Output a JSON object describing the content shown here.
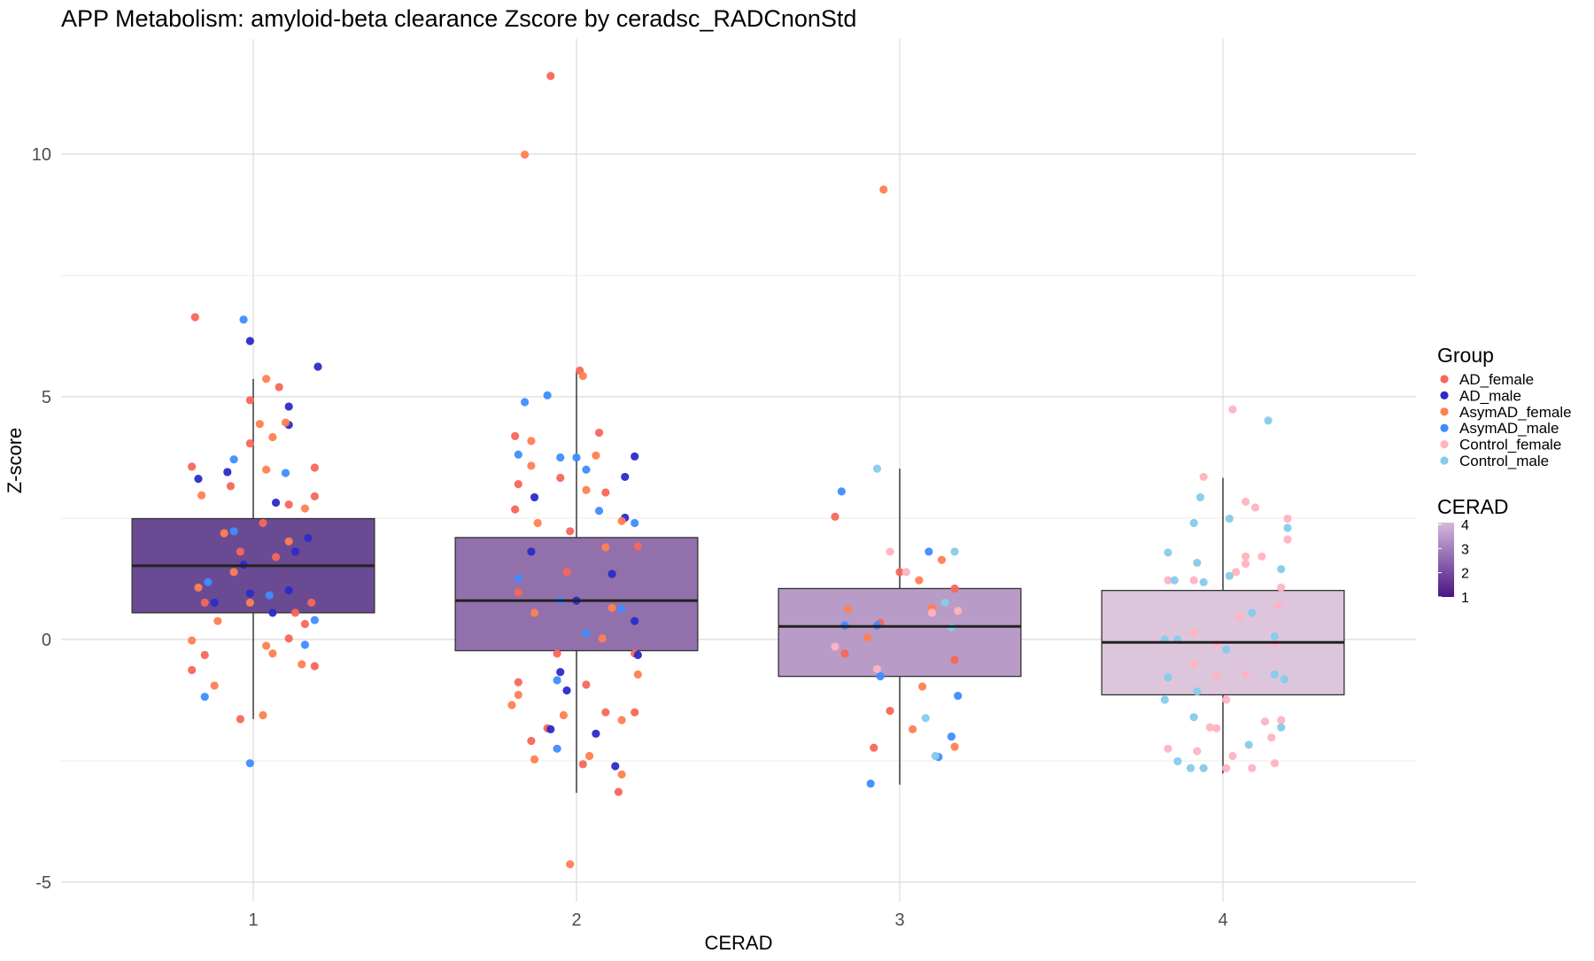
{
  "chart_data": {
    "type": "box+scatter",
    "title": "APP Metabolism: amyloid-beta clearance Zscore by ceradsc_RADCnonStd",
    "xlabel": "CERAD",
    "ylabel": "Z-score",
    "categories": [
      "1",
      "2",
      "3",
      "4"
    ],
    "y_ticks": [
      -5,
      0,
      5,
      10
    ],
    "ylim": [
      -5.4,
      12.4
    ],
    "grid": true,
    "legend_placement": "right",
    "group_legend": {
      "title": "Group",
      "entries": [
        {
          "name": "AD_female",
          "color": "#F8665A"
        },
        {
          "name": "AD_male",
          "color": "#2B2BC8"
        },
        {
          "name": "AsymAD_female",
          "color": "#FF7F50"
        },
        {
          "name": "AsymAD_male",
          "color": "#3F8CFF"
        },
        {
          "name": "Control_female",
          "color": "#FFB3C0"
        },
        {
          "name": "Control_male",
          "color": "#86CBEB"
        }
      ]
    },
    "fill_legend": {
      "title": "CERAD",
      "ticks": [
        "4",
        "3",
        "2",
        "1"
      ],
      "range": [
        1,
        4
      ],
      "colors": [
        "#4A1486",
        "#D4B9DA"
      ]
    },
    "boxes": [
      {
        "category": "1",
        "whisker_low": -1.64,
        "q1": 0.55,
        "median": 1.52,
        "q3": 2.49,
        "whisker_high": 5.37,
        "fill": "#6B4A94"
      },
      {
        "category": "2",
        "whisker_low": -3.16,
        "q1": -0.23,
        "median": 0.8,
        "q3": 2.1,
        "whisker_high": 5.52,
        "fill": "#9270AB"
      },
      {
        "category": "3",
        "whisker_low": -2.99,
        "q1": -0.76,
        "median": 0.27,
        "q3": 1.05,
        "whisker_high": 3.52,
        "fill": "#B89BC6"
      },
      {
        "category": "4",
        "whisker_low": -2.76,
        "q1": -1.14,
        "median": -0.06,
        "q3": 1.01,
        "whisker_high": 3.33,
        "fill": "#DDC6DC"
      }
    ],
    "points": {
      "AD_female": [
        [
          0.82,
          6.64
        ],
        [
          0.96,
          -1.64
        ],
        [
          0.81,
          -0.63
        ],
        [
          0.85,
          -0.32
        ],
        [
          0.99,
          4.93
        ],
        [
          1.08,
          5.2
        ],
        [
          0.99,
          4.04
        ],
        [
          0.81,
          3.56
        ],
        [
          1.19,
          3.54
        ],
        [
          0.93,
          3.16
        ],
        [
          1.11,
          2.78
        ],
        [
          1.19,
          2.95
        ],
        [
          1.16,
          0.32
        ],
        [
          1.19,
          -0.55
        ],
        [
          1.11,
          0.02
        ],
        [
          0.85,
          0.76
        ],
        [
          1.13,
          0.55
        ],
        [
          1.07,
          1.7
        ],
        [
          1.03,
          2.4
        ],
        [
          0.96,
          1.81
        ],
        [
          1.18,
          0.76
        ],
        [
          1.92,
          11.61
        ],
        [
          2.01,
          5.54
        ],
        [
          1.81,
          4.19
        ],
        [
          2.07,
          4.26
        ],
        [
          1.82,
          3.2
        ],
        [
          1.95,
          3.33
        ],
        [
          2.09,
          3.03
        ],
        [
          1.81,
          2.68
        ],
        [
          1.98,
          2.23
        ],
        [
          2.19,
          1.92
        ],
        [
          1.82,
          -0.88
        ],
        [
          1.86,
          -2.09
        ],
        [
          1.91,
          -1.83
        ],
        [
          2.02,
          -2.57
        ],
        [
          2.09,
          -1.5
        ],
        [
          2.13,
          -3.14
        ],
        [
          2.18,
          -1.5
        ],
        [
          1.94,
          -0.29
        ],
        [
          2.18,
          -0.29
        ],
        [
          1.82,
          0.97
        ],
        [
          1.97,
          1.39
        ],
        [
          2.03,
          -0.93
        ],
        [
          2.8,
          2.53
        ],
        [
          3.0,
          1.39
        ],
        [
          3.17,
          1.05
        ],
        [
          2.94,
          0.34
        ],
        [
          2.83,
          -0.29
        ],
        [
          2.97,
          -1.47
        ],
        [
          2.92,
          -2.23
        ],
        [
          3.17,
          -0.42
        ]
      ],
      "AD_male": [
        [
          0.99,
          6.15
        ],
        [
          1.2,
          5.62
        ],
        [
          1.11,
          4.8
        ],
        [
          1.11,
          4.42
        ],
        [
          0.92,
          3.45
        ],
        [
          0.83,
          3.31
        ],
        [
          1.07,
          2.82
        ],
        [
          1.17,
          2.09
        ],
        [
          0.99,
          0.95
        ],
        [
          1.06,
          0.55
        ],
        [
          0.97,
          1.54
        ],
        [
          0.88,
          0.76
        ],
        [
          1.13,
          1.81
        ],
        [
          1.11,
          1.01
        ],
        [
          1.95,
          -0.67
        ],
        [
          1.97,
          -1.05
        ],
        [
          1.92,
          -1.85
        ],
        [
          2.06,
          -1.94
        ],
        [
          2.12,
          -2.61
        ],
        [
          2.15,
          3.35
        ],
        [
          2.18,
          3.77
        ],
        [
          2.15,
          2.51
        ],
        [
          2.18,
          0.38
        ],
        [
          2.19,
          -0.32
        ],
        [
          1.87,
          2.93
        ],
        [
          1.86,
          1.81
        ],
        [
          2.11,
          1.35
        ],
        [
          2.0,
          0.8
        ]
      ],
      "AsymAD_female": [
        [
          1.03,
          -1.56
        ],
        [
          0.81,
          -0.02
        ],
        [
          0.88,
          -0.95
        ],
        [
          1.04,
          5.37
        ],
        [
          1.02,
          4.44
        ],
        [
          1.06,
          4.17
        ],
        [
          1.1,
          4.47
        ],
        [
          1.04,
          3.5
        ],
        [
          0.84,
          2.97
        ],
        [
          1.16,
          2.7
        ],
        [
          1.04,
          -0.13
        ],
        [
          1.15,
          -0.51
        ],
        [
          1.06,
          -0.29
        ],
        [
          0.94,
          1.39
        ],
        [
          0.89,
          0.38
        ],
        [
          0.99,
          0.76
        ],
        [
          0.91,
          2.19
        ],
        [
          1.11,
          2.02
        ],
        [
          0.83,
          1.07
        ],
        [
          1.84,
          9.99
        ],
        [
          2.02,
          5.43
        ],
        [
          1.86,
          4.09
        ],
        [
          2.06,
          3.79
        ],
        [
          1.86,
          3.58
        ],
        [
          2.03,
          3.08
        ],
        [
          2.14,
          2.44
        ],
        [
          1.88,
          2.4
        ],
        [
          2.09,
          1.9
        ],
        [
          1.8,
          -1.35
        ],
        [
          1.82,
          -1.14
        ],
        [
          1.87,
          -2.47
        ],
        [
          1.96,
          -1.56
        ],
        [
          2.04,
          -2.4
        ],
        [
          2.14,
          -1.66
        ],
        [
          2.14,
          -2.78
        ],
        [
          1.98,
          -4.63
        ],
        [
          2.08,
          0.02
        ],
        [
          1.87,
          0.55
        ],
        [
          2.11,
          0.65
        ],
        [
          2.19,
          -0.72
        ],
        [
          2.95,
          9.27
        ],
        [
          3.13,
          1.64
        ],
        [
          3.06,
          1.22
        ],
        [
          2.84,
          0.63
        ],
        [
          2.9,
          0.04
        ],
        [
          3.07,
          -0.97
        ],
        [
          3.04,
          -1.85
        ],
        [
          3.17,
          -2.21
        ],
        [
          3.1,
          0.65
        ]
      ],
      "AsymAD_male": [
        [
          0.97,
          6.59
        ],
        [
          0.99,
          -2.55
        ],
        [
          0.85,
          -1.18
        ],
        [
          0.94,
          3.71
        ],
        [
          1.1,
          3.43
        ],
        [
          1.19,
          0.4
        ],
        [
          1.16,
          -0.11
        ],
        [
          0.94,
          2.23
        ],
        [
          0.86,
          1.18
        ],
        [
          1.05,
          0.91
        ],
        [
          1.84,
          4.89
        ],
        [
          1.91,
          5.03
        ],
        [
          1.95,
          3.75
        ],
        [
          2.0,
          3.75
        ],
        [
          1.82,
          3.81
        ],
        [
          2.03,
          3.5
        ],
        [
          2.07,
          2.65
        ],
        [
          2.18,
          2.4
        ],
        [
          1.94,
          -2.25
        ],
        [
          1.94,
          -0.84
        ],
        [
          2.14,
          0.63
        ],
        [
          1.82,
          1.26
        ],
        [
          1.95,
          0.8
        ],
        [
          2.03,
          0.13
        ],
        [
          2.82,
          3.05
        ],
        [
          3.09,
          1.81
        ],
        [
          2.91,
          -2.97
        ],
        [
          3.18,
          -1.16
        ],
        [
          3.16,
          -2.0
        ],
        [
          3.12,
          -2.42
        ],
        [
          2.94,
          -0.76
        ],
        [
          2.83,
          0.29
        ],
        [
          2.93,
          0.29
        ]
      ],
      "Control_female": [
        [
          2.97,
          1.81
        ],
        [
          3.02,
          1.39
        ],
        [
          2.93,
          -0.61
        ],
        [
          2.8,
          -0.15
        ],
        [
          3.1,
          0.55
        ],
        [
          3.18,
          0.59
        ],
        [
          4.03,
          4.74
        ],
        [
          3.94,
          3.35
        ],
        [
          4.07,
          2.84
        ],
        [
          4.1,
          2.72
        ],
        [
          4.2,
          2.49
        ],
        [
          4.2,
          2.06
        ],
        [
          4.12,
          1.71
        ],
        [
          4.07,
          1.71
        ],
        [
          4.07,
          1.56
        ],
        [
          4.18,
          1.07
        ],
        [
          4.04,
          1.39
        ],
        [
          3.91,
          1.22
        ],
        [
          3.83,
          1.22
        ],
        [
          3.83,
          -2.25
        ],
        [
          3.92,
          -2.3
        ],
        [
          3.96,
          -1.81
        ],
        [
          3.98,
          -1.83
        ],
        [
          4.03,
          -2.4
        ],
        [
          4.09,
          -2.65
        ],
        [
          4.01,
          -2.65
        ],
        [
          4.16,
          -2.55
        ],
        [
          4.13,
          -1.69
        ],
        [
          4.18,
          -1.66
        ],
        [
          4.15,
          -2.02
        ],
        [
          4.01,
          -1.24
        ],
        [
          3.98,
          -0.76
        ],
        [
          4.07,
          -0.72
        ],
        [
          3.91,
          0.13
        ],
        [
          3.98,
          -0.08
        ],
        [
          4.16,
          -0.08
        ],
        [
          3.91,
          -0.51
        ],
        [
          4.05,
          0.46
        ],
        [
          4.17,
          0.7
        ]
      ],
      "Control_male": [
        [
          2.93,
          3.52
        ],
        [
          3.17,
          1.81
        ],
        [
          3.08,
          -1.62
        ],
        [
          3.11,
          -2.4
        ],
        [
          3.16,
          0.25
        ],
        [
          3.14,
          0.76
        ],
        [
          4.14,
          4.51
        ],
        [
          3.93,
          2.93
        ],
        [
          3.91,
          2.4
        ],
        [
          4.02,
          2.49
        ],
        [
          4.2,
          2.3
        ],
        [
          3.83,
          1.79
        ],
        [
          3.92,
          1.58
        ],
        [
          4.02,
          1.31
        ],
        [
          4.18,
          1.45
        ],
        [
          3.85,
          1.22
        ],
        [
          3.94,
          1.18
        ],
        [
          3.92,
          -1.07
        ],
        [
          3.91,
          -1.6
        ],
        [
          3.82,
          -1.24
        ],
        [
          3.86,
          -2.51
        ],
        [
          3.9,
          -2.65
        ],
        [
          3.94,
          -2.65
        ],
        [
          4.08,
          -2.17
        ],
        [
          4.18,
          -1.81
        ],
        [
          4.16,
          -0.72
        ],
        [
          4.19,
          -0.82
        ],
        [
          3.83,
          -0.78
        ],
        [
          4.01,
          -0.21
        ],
        [
          3.86,
          0.0
        ],
        [
          3.82,
          0.0
        ],
        [
          4.09,
          0.55
        ],
        [
          4.16,
          0.06
        ]
      ]
    }
  }
}
